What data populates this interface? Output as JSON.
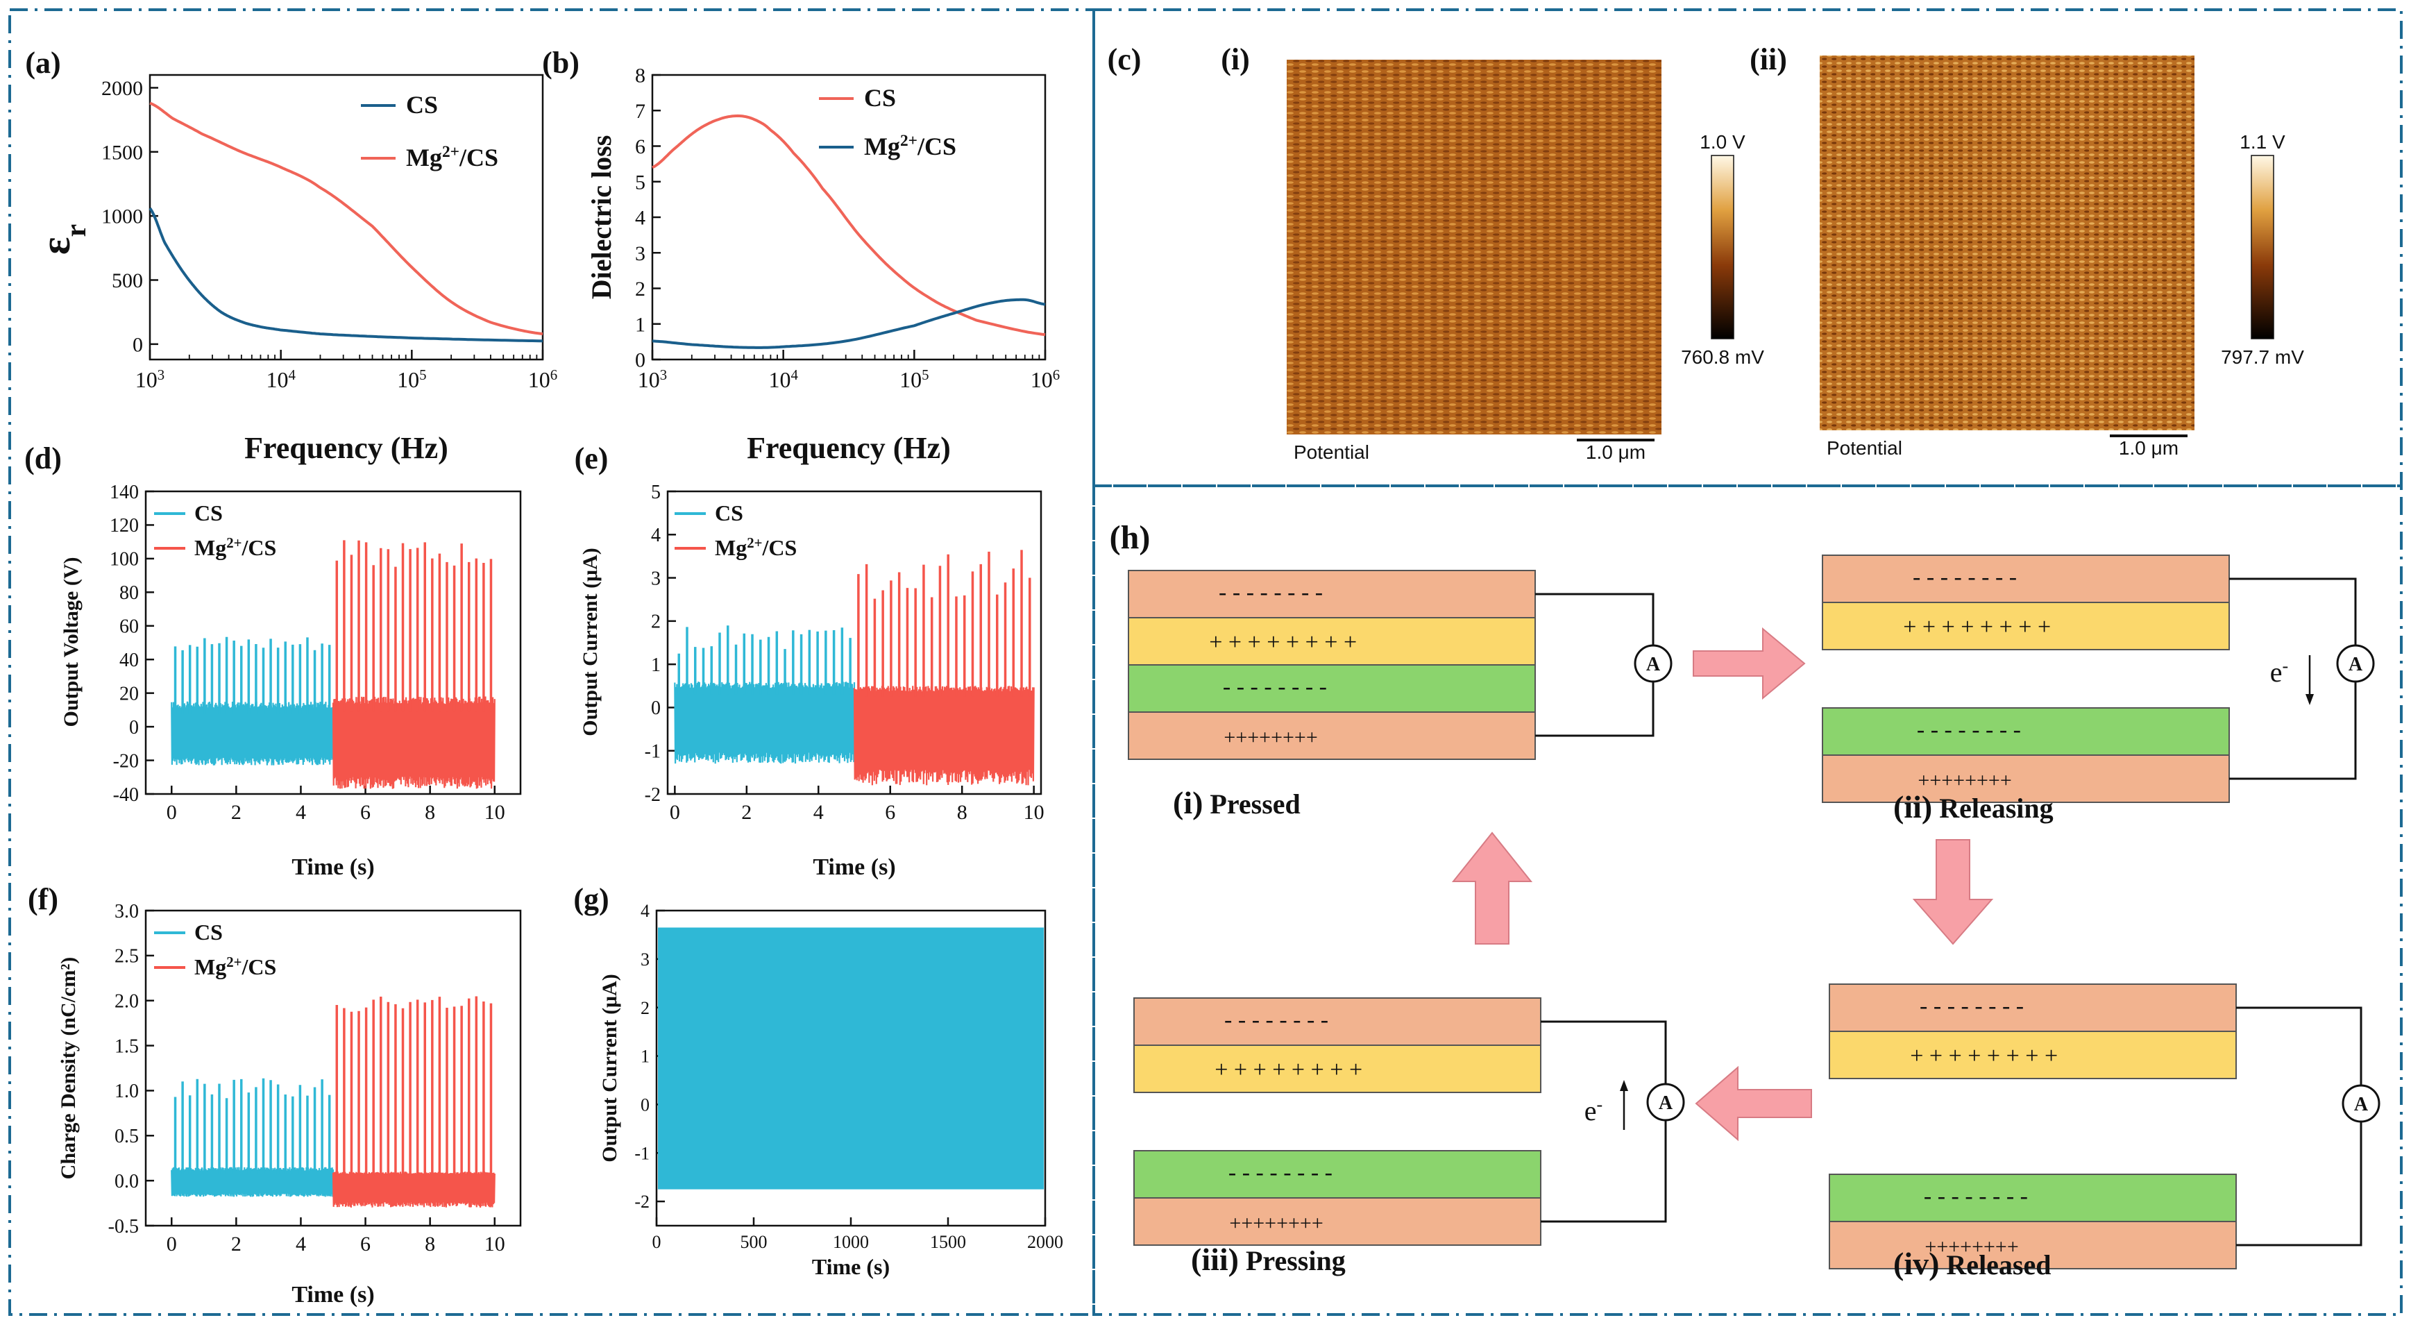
{
  "colors": {
    "frame": "#1d6a93",
    "cs_dielectric": "#1a5f8c",
    "mg_dielectric": "#f06458",
    "cs_output": "#2fb8d6",
    "mg_output": "#f5554b",
    "layer_orange": "#f2b38f",
    "layer_yellow": "#fbd86c",
    "layer_green": "#8bd46d",
    "arrow_fill": "#f7a0a6"
  },
  "chart_data": [
    {
      "id": "a",
      "panel_label": "(a)",
      "type": "line",
      "xlabel": "Frequency (Hz)",
      "ylabel_main": "ε",
      "ylabel_sub": "r",
      "xscale": "log",
      "xlim": [
        1000,
        1000000
      ],
      "ylim": [
        -120,
        2100
      ],
      "yticks": [
        0,
        500,
        1000,
        1500,
        2000
      ],
      "xtick_labels": [
        {
          "base": "10",
          "exp": "3"
        },
        {
          "base": "10",
          "exp": "4"
        },
        {
          "base": "10",
          "exp": "5"
        },
        {
          "base": "10",
          "exp": "6"
        }
      ],
      "legend": [
        "CS",
        "Mg2+/CS"
      ],
      "legend_position": "top-right",
      "series": [
        {
          "name": "CS",
          "x": [
            1000,
            1300,
            1800,
            2500,
            3500,
            5000,
            7000,
            10000,
            20000,
            50000,
            100000,
            300000,
            1000000
          ],
          "y": [
            1060,
            790,
            560,
            380,
            250,
            175,
            135,
            110,
            80,
            60,
            48,
            35,
            25
          ]
        },
        {
          "name": "Mg2+/CS",
          "x": [
            1000,
            1500,
            2500,
            5000,
            10000,
            20000,
            50000,
            100000,
            200000,
            400000,
            1000000
          ],
          "y": [
            1880,
            1760,
            1640,
            1500,
            1380,
            1220,
            920,
            600,
            330,
            170,
            80
          ]
        }
      ]
    },
    {
      "id": "b",
      "panel_label": "(b)",
      "type": "line",
      "xlabel": "Frequency (Hz)",
      "ylabel": "Dielectric loss",
      "xscale": "log",
      "xlim": [
        1000,
        1000000
      ],
      "ylim": [
        0,
        8
      ],
      "yticks": [
        0,
        1,
        2,
        3,
        4,
        5,
        6,
        7,
        8
      ],
      "xtick_labels": [
        {
          "base": "10",
          "exp": "3"
        },
        {
          "base": "10",
          "exp": "4"
        },
        {
          "base": "10",
          "exp": "5"
        },
        {
          "base": "10",
          "exp": "6"
        }
      ],
      "legend": [
        "CS",
        "Mg2+/CS"
      ],
      "legend_position": "top-right",
      "series": [
        {
          "name": "CS",
          "x": [
            1000,
            1500,
            2200,
            3200,
            4500,
            6000,
            8000,
            12000,
            20000,
            40000,
            80000,
            150000,
            300000,
            1000000
          ],
          "y": [
            5.4,
            5.95,
            6.45,
            6.75,
            6.85,
            6.75,
            6.45,
            5.8,
            4.8,
            3.4,
            2.3,
            1.6,
            1.1,
            0.7
          ]
        },
        {
          "name": "Mg2+/CS",
          "x": [
            1000,
            2000,
            5000,
            10000,
            30000,
            100000,
            200000,
            400000,
            700000,
            1000000
          ],
          "y": [
            0.52,
            0.42,
            0.34,
            0.36,
            0.52,
            0.95,
            1.3,
            1.6,
            1.68,
            1.55
          ]
        }
      ]
    },
    {
      "id": "d",
      "panel_label": "(d)",
      "type": "line",
      "xlabel": "Time (s)",
      "ylabel": "Output Voltage (V)",
      "xlim": [
        -0.8,
        10.8
      ],
      "ylim": [
        -40,
        140
      ],
      "xticks": [
        0,
        2,
        4,
        6,
        8,
        10
      ],
      "yticks": [
        -40,
        -20,
        0,
        20,
        40,
        60,
        80,
        100,
        120,
        140
      ],
      "legend": [
        "CS",
        "Mg2+/CS"
      ],
      "legend_position": "top-left",
      "series": [
        {
          "name": "CS",
          "t_start": 0,
          "t_end": 5,
          "peaks_per_s": 4.4,
          "peak_max": 55,
          "peak_min": 45,
          "base_high": 15,
          "base_low": -23
        },
        {
          "name": "Mg2+/CS",
          "t_start": 5,
          "t_end": 10,
          "peaks_per_s": 4.4,
          "peak_max": 112,
          "peak_min": 95,
          "base_high": 18,
          "base_low": -37
        }
      ]
    },
    {
      "id": "e",
      "panel_label": "(e)",
      "type": "line",
      "xlabel": "Time (s)",
      "ylabel": "Output Current (μA)",
      "xlim": [
        -0.2,
        10.2
      ],
      "ylim": [
        -2,
        5
      ],
      "xticks": [
        0,
        2,
        4,
        6,
        8,
        10
      ],
      "yticks": [
        -2,
        -1,
        0,
        1,
        2,
        3,
        4,
        5
      ],
      "legend": [
        "CS",
        "Mg2+/CS"
      ],
      "legend_position": "top-left",
      "series": [
        {
          "name": "CS",
          "t_start": 0,
          "t_end": 5,
          "peaks_per_s": 4.4,
          "peak_max": 1.9,
          "peak_min": 1.2,
          "base_high": 0.6,
          "base_low": -1.3
        },
        {
          "name": "Mg2+/CS",
          "t_start": 5,
          "t_end": 10,
          "peaks_per_s": 4.4,
          "peak_max": 3.7,
          "peak_min": 2.5,
          "base_high": 0.5,
          "base_low": -1.8
        }
      ]
    },
    {
      "id": "f",
      "panel_label": "(f)",
      "type": "line",
      "xlabel": "Time (s)",
      "ylabel": "Charge Density (nC/cm²)",
      "xlim": [
        -0.8,
        10.8
      ],
      "ylim": [
        -0.5,
        3.0
      ],
      "xticks": [
        0,
        2,
        4,
        6,
        8,
        10
      ],
      "yticks": [
        -0.5,
        0.0,
        0.5,
        1.0,
        1.5,
        2.0,
        2.5,
        3.0
      ],
      "legend": [
        "CS",
        "Mg2+/CS"
      ],
      "legend_position": "top-left",
      "series": [
        {
          "name": "CS",
          "t_start": 0,
          "t_end": 5,
          "peaks_per_s": 4.4,
          "peak_max": 1.15,
          "peak_min": 0.9,
          "base_high": 0.15,
          "base_low": -0.18
        },
        {
          "name": "Mg2+/CS",
          "t_start": 5,
          "t_end": 10,
          "peaks_per_s": 4.4,
          "peak_max": 2.05,
          "peak_min": 1.85,
          "base_high": 0.1,
          "base_low": -0.3
        }
      ]
    },
    {
      "id": "g",
      "panel_label": "(g)",
      "type": "area",
      "xlabel": "Time (s)",
      "ylabel": "Output Current (μA)",
      "xlim": [
        0,
        2000
      ],
      "ylim": [
        -2.5,
        4
      ],
      "xticks": [
        0,
        500,
        1000,
        1500,
        2000
      ],
      "yticks": [
        -2,
        -1,
        0,
        1,
        2,
        3,
        4
      ],
      "series": [
        {
          "name": "",
          "x": [
            0,
            2000
          ],
          "upper": [
            3.65,
            3.65
          ],
          "lower": [
            -1.75,
            -1.75
          ]
        }
      ]
    }
  ],
  "panel_c": {
    "label": "(c)",
    "images": [
      {
        "label": "(i)",
        "scale_top": "1.0 V",
        "scale_bottom": "760.8 mV",
        "caption": "Potential",
        "scalebar": "1.0 μm"
      },
      {
        "label": "(ii)",
        "scale_top": "1.1 V",
        "scale_bottom": "797.7 mV",
        "caption": "Potential",
        "scalebar": "1.0 μm"
      }
    ]
  },
  "panel_h": {
    "label": "(h)",
    "meter": "A",
    "electron": "e",
    "electron_sup": "-",
    "minus_row": "- - - - - - - -",
    "plus_row": "+ + + + + + + +",
    "plus_tight": "++++++++",
    "stages": [
      {
        "numeral": "(i)",
        "name": "Pressed"
      },
      {
        "numeral": "(ii)",
        "name": "Releasing"
      },
      {
        "numeral": "(iii)",
        "name": "Pressing"
      },
      {
        "numeral": "(iv)",
        "name": "Released"
      }
    ]
  }
}
